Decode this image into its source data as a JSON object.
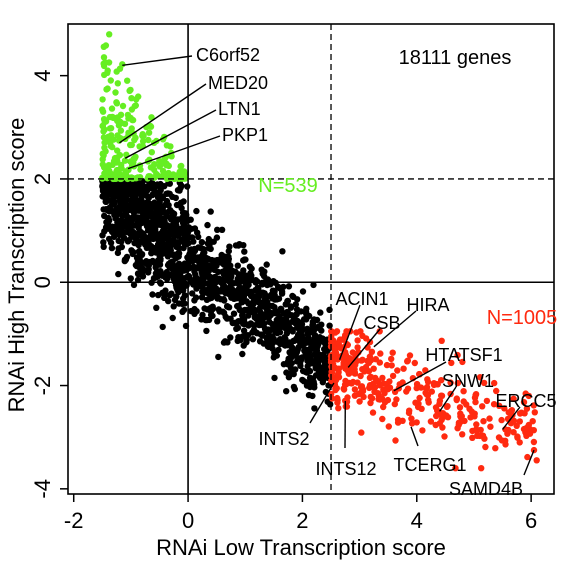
{
  "chart_data": {
    "type": "scatter",
    "title": "",
    "xlabel": "RNAi Low Transcription score",
    "ylabel": "RNAi High Transcription score",
    "xlim": [
      -2.1,
      6.4
    ],
    "ylim": [
      -4.1,
      5.0
    ],
    "x_ticks": [
      -2,
      0,
      2,
      4,
      6
    ],
    "y_ticks": [
      -4,
      -2,
      0,
      2,
      4
    ],
    "x_tick_labels": [
      "-2",
      "0",
      "2",
      "4",
      "6"
    ],
    "y_tick_labels": [
      "-4",
      "-2",
      "0",
      "2",
      "4"
    ],
    "grid": false,
    "annotation_total": "18111 genes",
    "reference_lines": {
      "solid_x": 0,
      "solid_y": 0,
      "dashed_x": 2.5,
      "dashed_y": 2.0
    },
    "groups": [
      {
        "label": "N=539",
        "color": "#66ee22"
      },
      {
        "label": "N=1005",
        "color": "#ff2a10"
      },
      {
        "label": "",
        "color": "#000000"
      }
    ],
    "highlighted_genes": [
      {
        "name": "C6orf52",
        "x": -1.15,
        "y": 4.2
      },
      {
        "name": "MED20",
        "x": -1.2,
        "y": 2.7
      },
      {
        "name": "LTN1",
        "x": -1.1,
        "y": 2.4
      },
      {
        "name": "PKP1",
        "x": -1.05,
        "y": 2.2
      },
      {
        "name": "ACIN1",
        "x": 2.65,
        "y": -1.5
      },
      {
        "name": "CSB",
        "x": 2.8,
        "y": -1.65
      },
      {
        "name": "HIRA",
        "x": 3.25,
        "y": -1.25
      },
      {
        "name": "HTATSF1",
        "x": 3.6,
        "y": -2.1
      },
      {
        "name": "SNW1",
        "x": 4.4,
        "y": -2.5
      },
      {
        "name": "ERCC5",
        "x": 5.5,
        "y": -2.85
      },
      {
        "name": "INTS2",
        "x": 2.55,
        "y": -1.95
      },
      {
        "name": "INTS12",
        "x": 2.75,
        "y": -2.3
      },
      {
        "name": "TCERG1",
        "x": 3.9,
        "y": -2.8
      },
      {
        "name": "SAMD4B",
        "x": 6.05,
        "y": -3.25
      }
    ]
  }
}
